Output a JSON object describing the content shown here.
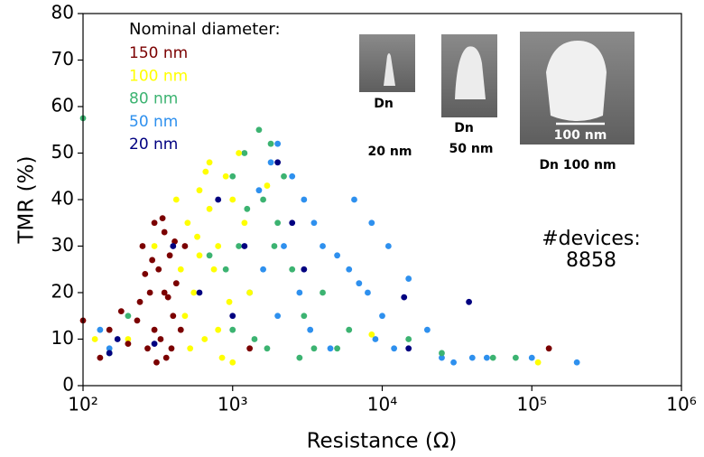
{
  "chart_data": {
    "type": "scatter",
    "xlabel": "Resistance (Ω)",
    "ylabel": "TMR (%)",
    "xscale": "log",
    "xlim": [
      100,
      1000000
    ],
    "ylim": [
      0,
      80
    ],
    "xticks": [
      {
        "value": 100,
        "label": "10²"
      },
      {
        "value": 1000,
        "label": "10³"
      },
      {
        "value": 10000,
        "label": "10⁴"
      },
      {
        "value": 100000,
        "label": "10⁵"
      },
      {
        "value": 1000000,
        "label": "10⁶"
      }
    ],
    "yticks": [
      0,
      10,
      20,
      30,
      40,
      50,
      60,
      70,
      80
    ],
    "legend_title": "Nominal diameter:",
    "legend": "upper left",
    "series": [
      {
        "name": "150 nm",
        "color": "#7b0000",
        "x": [
          250,
          300,
          320,
          350,
          280,
          380,
          400,
          330,
          270,
          360,
          420,
          300,
          240,
          290,
          340,
          410,
          370,
          310,
          260,
          450,
          350,
          230,
          200,
          180,
          150,
          130,
          100,
          1300,
          480,
          390,
          130000
        ],
        "values": [
          30,
          35,
          25,
          33,
          20,
          28,
          15,
          10,
          8,
          6,
          22,
          12,
          18,
          27,
          36,
          31,
          19,
          5,
          24,
          12,
          20,
          14,
          9,
          16,
          12,
          6,
          14,
          8,
          30,
          8,
          8
        ]
      },
      {
        "name": "100 nm",
        "color": "#ffff00",
        "x": [
          500,
          600,
          700,
          800,
          900,
          550,
          650,
          750,
          1000,
          1100,
          480,
          520,
          850,
          950,
          1200,
          600,
          700,
          800,
          450,
          1300,
          300,
          200,
          120,
          1700,
          8500,
          110000,
          1000,
          660,
          580,
          420
        ],
        "values": [
          35,
          42,
          48,
          30,
          45,
          20,
          10,
          25,
          40,
          50,
          15,
          8,
          6,
          18,
          35,
          28,
          38,
          12,
          25,
          20,
          30,
          10,
          10,
          43,
          11,
          5,
          5,
          46,
          32,
          40
        ]
      },
      {
        "name": "80 nm",
        "color": "#3cb371",
        "x": [
          1000,
          1200,
          1500,
          1800,
          1100,
          1300,
          1600,
          2000,
          900,
          1400,
          2500,
          3000,
          2200,
          1700,
          1000,
          5000,
          4000,
          3500,
          6000,
          15000,
          25000,
          55000,
          78000,
          100,
          150,
          200,
          700,
          1900,
          1250,
          2800
        ],
        "values": [
          45,
          50,
          55,
          52,
          30,
          20,
          40,
          35,
          25,
          10,
          25,
          15,
          45,
          8,
          12,
          8,
          20,
          8,
          12,
          10,
          7,
          6,
          6,
          57.5,
          7,
          15,
          28,
          30,
          38,
          6
        ]
      },
      {
        "name": "50 nm",
        "color": "#2e90ee",
        "x": [
          1500,
          1800,
          2000,
          2500,
          3000,
          3500,
          4000,
          5000,
          6000,
          7000,
          8000,
          10000,
          2200,
          2800,
          3300,
          4500,
          9000,
          12000,
          15000,
          20000,
          25000,
          30000,
          40000,
          50000,
          100000,
          200000,
          2000,
          6500,
          1600,
          8500,
          11000,
          150,
          130
        ],
        "values": [
          42,
          48,
          52,
          45,
          40,
          35,
          30,
          28,
          25,
          22,
          20,
          15,
          30,
          20,
          12,
          8,
          10,
          8,
          23,
          12,
          6,
          5,
          6,
          6,
          6,
          5,
          15,
          40,
          25,
          35,
          30,
          8,
          12
        ]
      },
      {
        "name": "20 nm",
        "color": "#000080",
        "x": [
          170,
          400,
          2000,
          1200,
          14000,
          38000,
          15000,
          600,
          300,
          1000,
          2500,
          150,
          800,
          3000
        ],
        "values": [
          10,
          30,
          48,
          30,
          19,
          18,
          8,
          20,
          9,
          15,
          35,
          7,
          40,
          25
        ]
      }
    ],
    "annotation": [
      "#devices:",
      "8858"
    ],
    "insets": [
      {
        "lines": [
          "Dn",
          "20 nm"
        ]
      },
      {
        "lines": [
          "Dn",
          "50 nm"
        ]
      },
      {
        "lines": [
          "Dn 100 nm"
        ],
        "scale_bar": "100 nm"
      }
    ]
  }
}
